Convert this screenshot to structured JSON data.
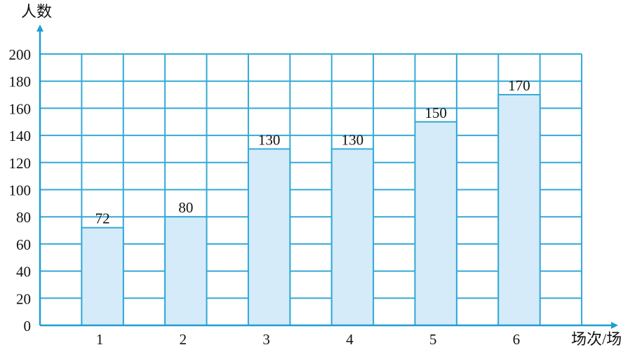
{
  "chart_data": {
    "type": "bar",
    "title": "",
    "xlabel": "场次/场",
    "ylabel": "人数",
    "categories": [
      "1",
      "2",
      "3",
      "4",
      "5",
      "6"
    ],
    "values": [
      72,
      80,
      130,
      130,
      150,
      170
    ],
    "ylim": [
      0,
      200
    ],
    "ytick_step": 20,
    "yticks": [
      "0",
      "20",
      "40",
      "60",
      "80",
      "100",
      "120",
      "140",
      "160",
      "180",
      "200"
    ],
    "data_labels": [
      "72",
      "80",
      "130",
      "130",
      "150",
      "170"
    ],
    "grid": true,
    "legend": "none"
  },
  "colors": {
    "bar_fill": "#d5ebfa",
    "grid": "#35a9d6",
    "axis": "#1f9ed1",
    "text": "#111111"
  }
}
